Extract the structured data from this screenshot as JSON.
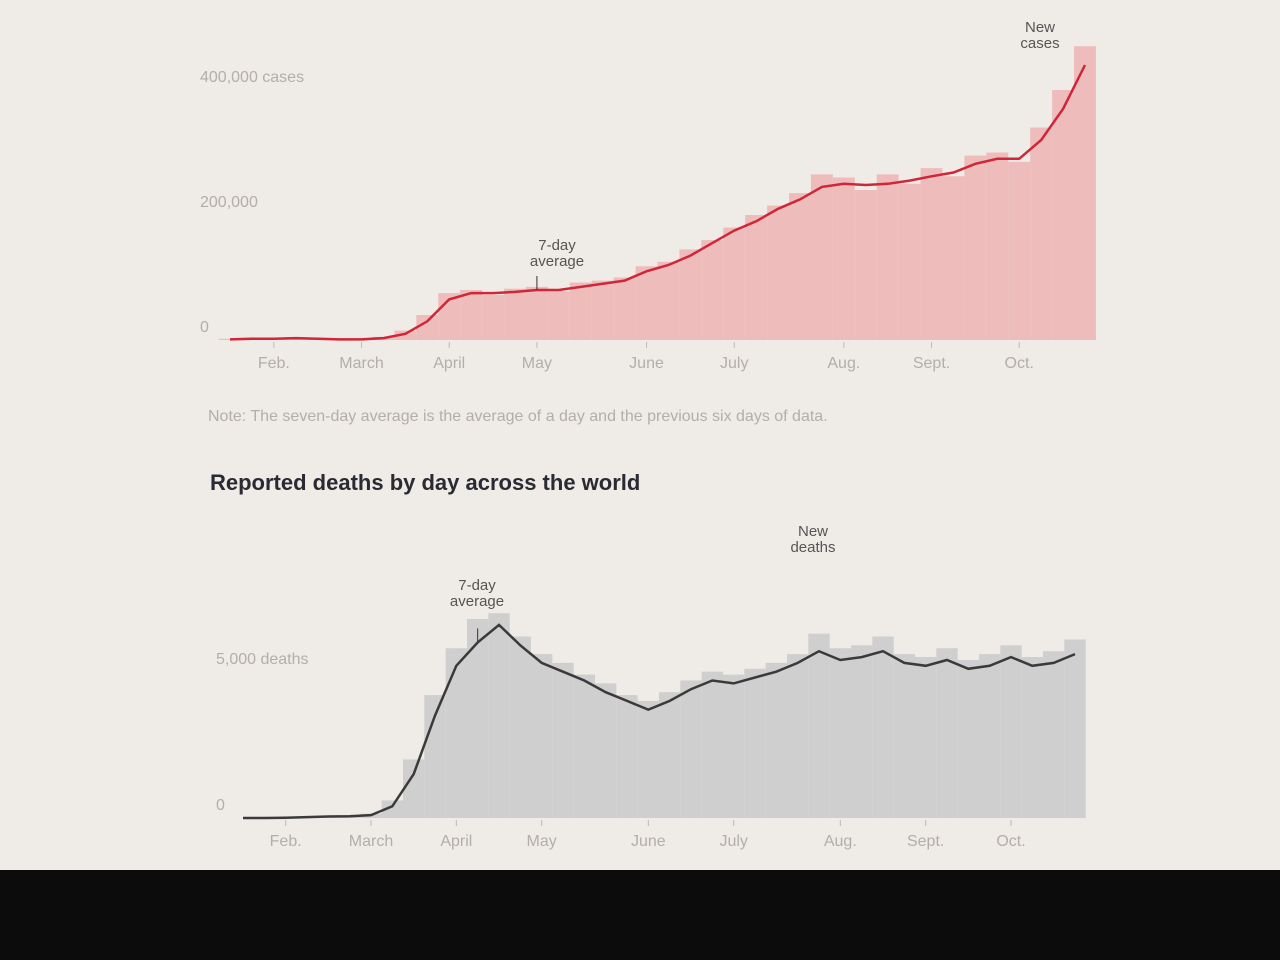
{
  "chart_data": [
    {
      "type": "combo",
      "categories": [
        null,
        null,
        "Feb.",
        null,
        null,
        null,
        "March",
        null,
        null,
        null,
        "April",
        null,
        null,
        null,
        "May",
        null,
        null,
        null,
        null,
        "June",
        null,
        null,
        null,
        "July",
        null,
        null,
        null,
        null,
        "Aug.",
        null,
        null,
        null,
        "Sept.",
        null,
        null,
        null,
        "Oct.",
        null,
        null,
        null
      ],
      "series": [
        {
          "name": "New cases",
          "type": "bar",
          "color": "#efbcbc",
          "values": [
            2000,
            2500,
            2000,
            4000,
            2000,
            1500,
            1500,
            5000,
            15000,
            40000,
            75000,
            80000,
            72000,
            82000,
            85000,
            78000,
            92000,
            95000,
            100000,
            118000,
            125000,
            145000,
            160000,
            180000,
            200000,
            215000,
            235000,
            265000,
            260000,
            240000,
            265000,
            250000,
            275000,
            262000,
            295000,
            300000,
            285000,
            340000,
            400000,
            470000
          ]
        },
        {
          "name": "7-day average",
          "type": "line",
          "color": "#cf2638",
          "values": [
            1000,
            2000,
            2000,
            3000,
            2000,
            1000,
            1000,
            3000,
            10000,
            30000,
            65000,
            75000,
            75000,
            77000,
            80000,
            80000,
            85000,
            90000,
            95000,
            110000,
            120000,
            135000,
            155000,
            175000,
            190000,
            210000,
            225000,
            245000,
            250000,
            248000,
            250000,
            255000,
            262000,
            268000,
            282000,
            290000,
            290000,
            320000,
            370000,
            440000
          ]
        }
      ],
      "ylim": [
        0,
        480000
      ],
      "yticks": [
        0,
        {
          "value": 200000,
          "label": "200,000"
        },
        {
          "value": 400000,
          "label": "400,000 cases"
        }
      ],
      "grid": false,
      "note": "Note: The seven-day average is the average of a day and the previous six days of data."
    },
    {
      "type": "combo",
      "title": "Reported deaths by day across the world",
      "categories": [
        null,
        null,
        "Feb.",
        null,
        null,
        null,
        "March",
        null,
        null,
        null,
        "April",
        null,
        null,
        null,
        "May",
        null,
        null,
        null,
        null,
        "June",
        null,
        null,
        null,
        "July",
        null,
        null,
        null,
        null,
        "Aug.",
        null,
        null,
        null,
        "Sept.",
        null,
        null,
        null,
        "Oct.",
        null,
        null,
        null
      ],
      "series": [
        {
          "name": "New deaths",
          "type": "bar",
          "color": "#cfcfcf",
          "values": [
            0,
            0,
            20,
            40,
            60,
            70,
            150,
            600,
            2000,
            4200,
            5800,
            6800,
            7000,
            6200,
            5600,
            5300,
            4900,
            4600,
            4200,
            4000,
            4300,
            4700,
            5000,
            4900,
            5100,
            5300,
            5600,
            6300,
            5800,
            5900,
            6200,
            5600,
            5500,
            5800,
            5400,
            5600,
            5900,
            5500,
            5700,
            6100
          ]
        },
        {
          "name": "7-day average",
          "type": "line",
          "color": "#3a3a3a",
          "values": [
            0,
            0,
            10,
            30,
            50,
            60,
            100,
            400,
            1500,
            3500,
            5200,
            6000,
            6600,
            5900,
            5300,
            5000,
            4700,
            4300,
            4000,
            3700,
            4000,
            4400,
            4700,
            4600,
            4800,
            5000,
            5300,
            5700,
            5400,
            5500,
            5700,
            5300,
            5200,
            5400,
            5100,
            5200,
            5500,
            5200,
            5300,
            5600
          ]
        }
      ],
      "ylim": [
        0,
        9500
      ],
      "yticks": [
        0,
        {
          "value": 5000,
          "label": "5,000 deaths"
        }
      ],
      "grid": false
    }
  ]
}
